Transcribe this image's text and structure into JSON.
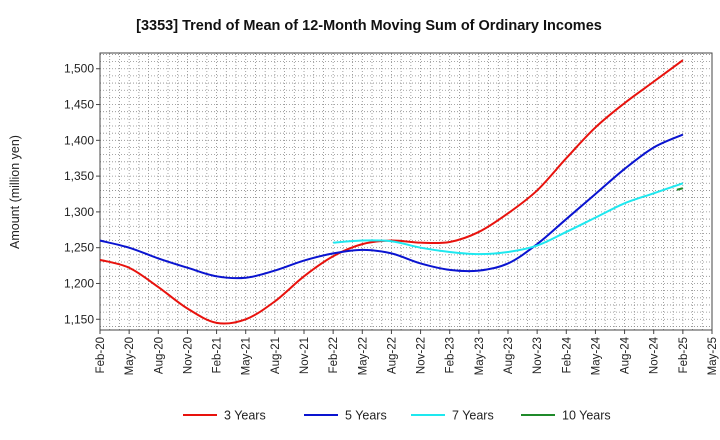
{
  "chart_data": {
    "type": "line",
    "title": "[3353]  Trend of Mean of 12-Month Moving Sum of Ordinary Incomes",
    "xlabel": "",
    "ylabel": "Amount (million yen)",
    "ylim": [
      1135,
      1522
    ],
    "yticks": [
      1150,
      1200,
      1250,
      1300,
      1350,
      1400,
      1450,
      1500
    ],
    "ytick_labels": [
      "1,150",
      "1,200",
      "1,250",
      "1,300",
      "1,350",
      "1,400",
      "1,450",
      "1,500"
    ],
    "categories": [
      "Feb-20",
      "May-20",
      "Aug-20",
      "Nov-20",
      "Feb-21",
      "May-21",
      "Aug-21",
      "Nov-21",
      "Feb-22",
      "May-22",
      "Aug-22",
      "Nov-22",
      "Feb-23",
      "May-23",
      "Aug-23",
      "Nov-23",
      "Feb-24",
      "May-24",
      "Aug-24",
      "Nov-24",
      "Feb-25",
      "May-25"
    ],
    "grid": true,
    "legend_position": "bottom",
    "series": [
      {
        "name": "3 Years",
        "color": "#e8120d",
        "values": [
          1233,
          1222,
          1195,
          1165,
          1145,
          1150,
          1175,
          1210,
          1238,
          1255,
          1260,
          1257,
          1258,
          1272,
          1298,
          1330,
          1375,
          1418,
          1452,
          1482,
          1512,
          null
        ]
      },
      {
        "name": "5 Years",
        "color": "#0a14d0",
        "values": [
          1260,
          1250,
          1235,
          1222,
          1210,
          1208,
          1218,
          1232,
          1242,
          1247,
          1242,
          1228,
          1219,
          1218,
          1228,
          1255,
          1290,
          1325,
          1360,
          1390,
          1408,
          null
        ]
      },
      {
        "name": "7 Years",
        "color": "#1ee8ef",
        "values": [
          null,
          null,
          null,
          null,
          null,
          null,
          null,
          null,
          1257,
          1260,
          1259,
          1250,
          1244,
          1241,
          1244,
          1253,
          1272,
          1292,
          1312,
          1326,
          1340,
          null
        ]
      },
      {
        "name": "10 Years",
        "color": "#1f8a2a",
        "values": [
          null,
          null,
          null,
          null,
          null,
          null,
          null,
          null,
          null,
          null,
          null,
          null,
          null,
          null,
          null,
          null,
          null,
          null,
          null,
          null,
          1333,
          null
        ]
      }
    ]
  }
}
